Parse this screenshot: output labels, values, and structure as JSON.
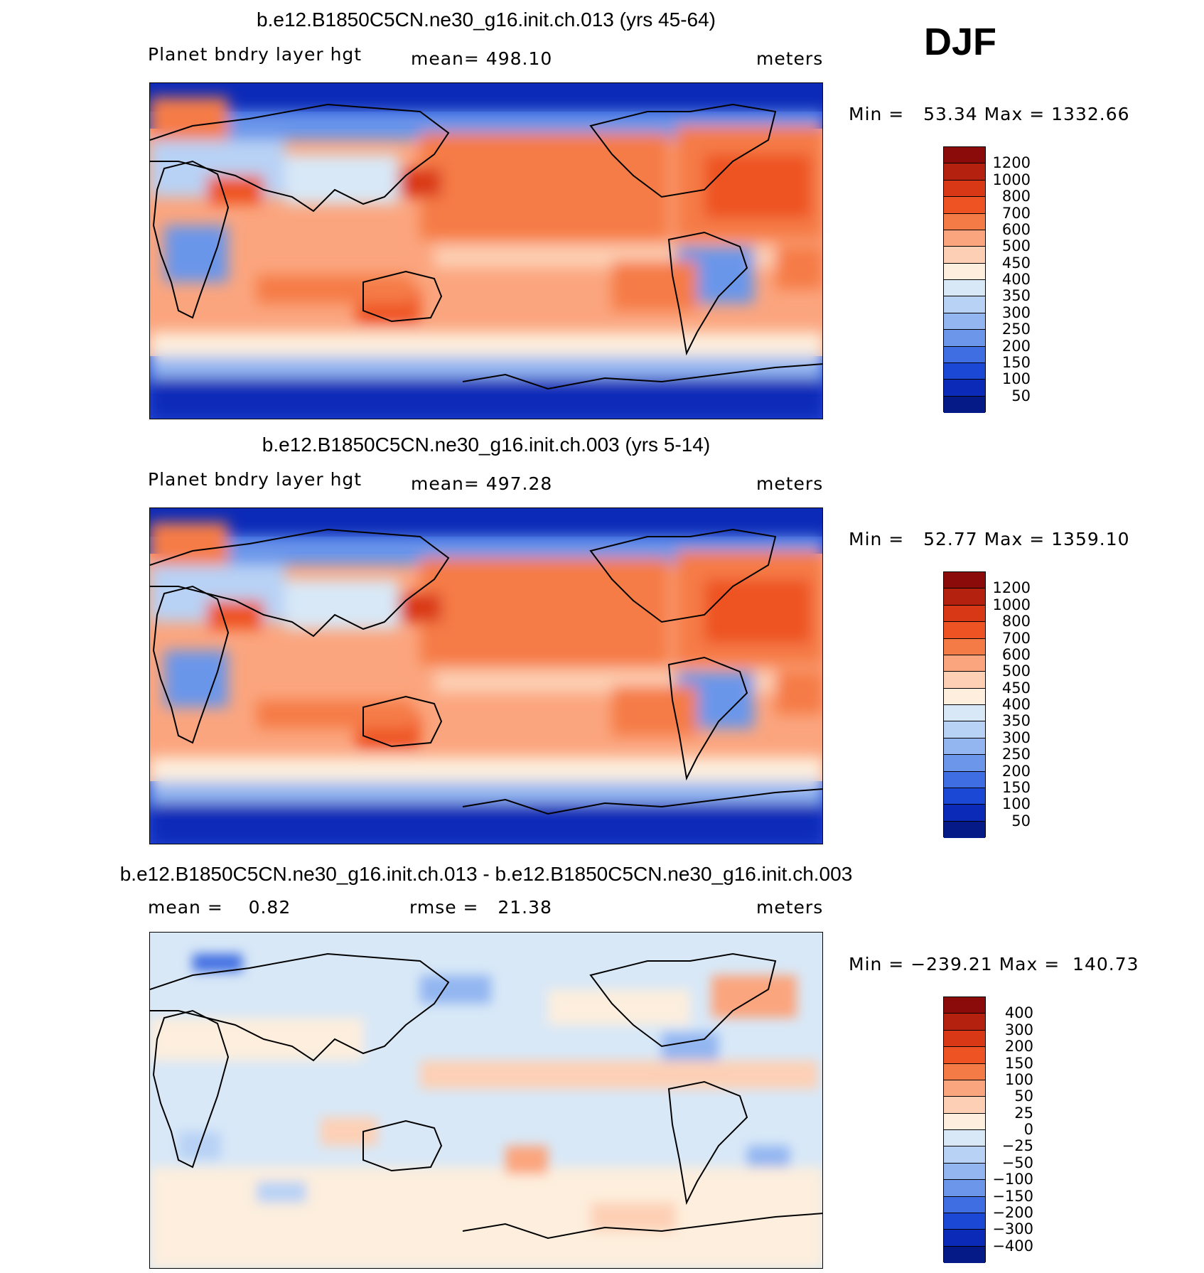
{
  "season": "DJF",
  "panels": [
    {
      "title": "b.e12.B1850C5CN.ne30_g16.init.ch.013 (yrs 45-64)",
      "left_label": "Planet bndry layer hgt",
      "center_label": "mean= 498.10",
      "right_label": "meters",
      "minmax": "Min =   53.34 Max = 1332.66",
      "colorbar_labels": [
        "1200",
        "1000",
        "800",
        "700",
        "600",
        "500",
        "450",
        "400",
        "350",
        "300",
        "250",
        "200",
        "150",
        "100",
        "50"
      ]
    },
    {
      "title": "b.e12.B1850C5CN.ne30_g16.init.ch.003 (yrs 5-14)",
      "left_label": "Planet bndry layer hgt",
      "center_label": "mean= 497.28",
      "right_label": "meters",
      "minmax": "Min =   52.77 Max = 1359.10",
      "colorbar_labels": [
        "1200",
        "1000",
        "800",
        "700",
        "600",
        "500",
        "450",
        "400",
        "350",
        "300",
        "250",
        "200",
        "150",
        "100",
        "50"
      ]
    },
    {
      "title": "b.e12.B1850C5CN.ne30_g16.init.ch.013 - b.e12.B1850C5CN.ne30_g16.init.ch.003",
      "left_label": "mean =    0.82",
      "center_label": "rmse =   21.38",
      "right_label": "meters",
      "minmax": "Min = −239.21 Max =  140.73",
      "colorbar_labels": [
        "400",
        "300",
        "200",
        "150",
        "100",
        "50",
        "25",
        "0",
        "−25",
        "−50",
        "−100",
        "−150",
        "−200",
        "−300",
        "−400"
      ]
    }
  ],
  "colors": {
    "colorbar": [
      "#8b0a0a",
      "#b5210f",
      "#d93816",
      "#ee5324",
      "#f57b46",
      "#fba57e",
      "#fdd0b5",
      "#fdeedd",
      "#d8e8f7",
      "#b8d2f5",
      "#93b6f1",
      "#6b96ea",
      "#3f6ee2",
      "#1c48d6",
      "#0b2ab8",
      "#051a86"
    ]
  }
}
